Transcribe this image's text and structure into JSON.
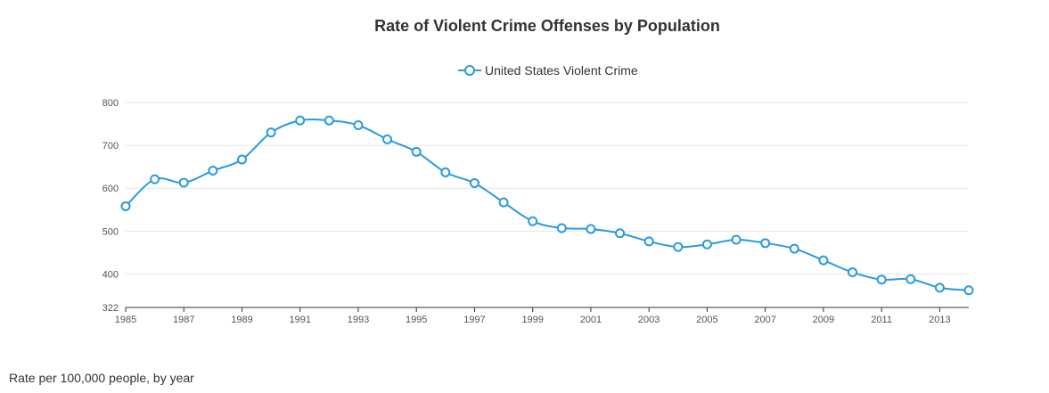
{
  "chart_data": {
    "type": "line",
    "title": "Rate of Violent Crime Offenses by Population",
    "subtitle": "",
    "xlabel": "",
    "ylabel": "",
    "ylim": [
      322,
      800
    ],
    "xlim": [
      1985,
      2014
    ],
    "y_ticks": [
      "800",
      "700",
      "600",
      "500",
      "400",
      "322"
    ],
    "y_tick_values": [
      800,
      700,
      600,
      500,
      400,
      322
    ],
    "x_ticks": [
      "1985",
      "1987",
      "1989",
      "1991",
      "1993",
      "1995",
      "1997",
      "1999",
      "2001",
      "2003",
      "2005",
      "2007",
      "2009",
      "2011",
      "2013"
    ],
    "x_tick_values": [
      1985,
      1987,
      1989,
      1991,
      1993,
      1995,
      1997,
      1999,
      2001,
      2003,
      2005,
      2007,
      2009,
      2011,
      2013
    ],
    "grid": true,
    "legend_position": "top-center",
    "x": [
      1985,
      1986,
      1987,
      1988,
      1989,
      1990,
      1991,
      1992,
      1993,
      1994,
      1995,
      1996,
      1997,
      1998,
      1999,
      2000,
      2001,
      2002,
      2003,
      2004,
      2005,
      2006,
      2007,
      2008,
      2009,
      2010,
      2011,
      2012,
      2013,
      2014
    ],
    "series": [
      {
        "name": "United States Violent Crime",
        "color": "#2b9ae0",
        "values": [
          558,
          621,
          613,
          641,
          667,
          730,
          758,
          758,
          747,
          714,
          685,
          637,
          612,
          567,
          523,
          507,
          505,
          495,
          476,
          463,
          469,
          480,
          472,
          459,
          432,
          404,
          387,
          388,
          368,
          362
        ]
      }
    ]
  },
  "caption": "Rate per 100,000 people, by year"
}
